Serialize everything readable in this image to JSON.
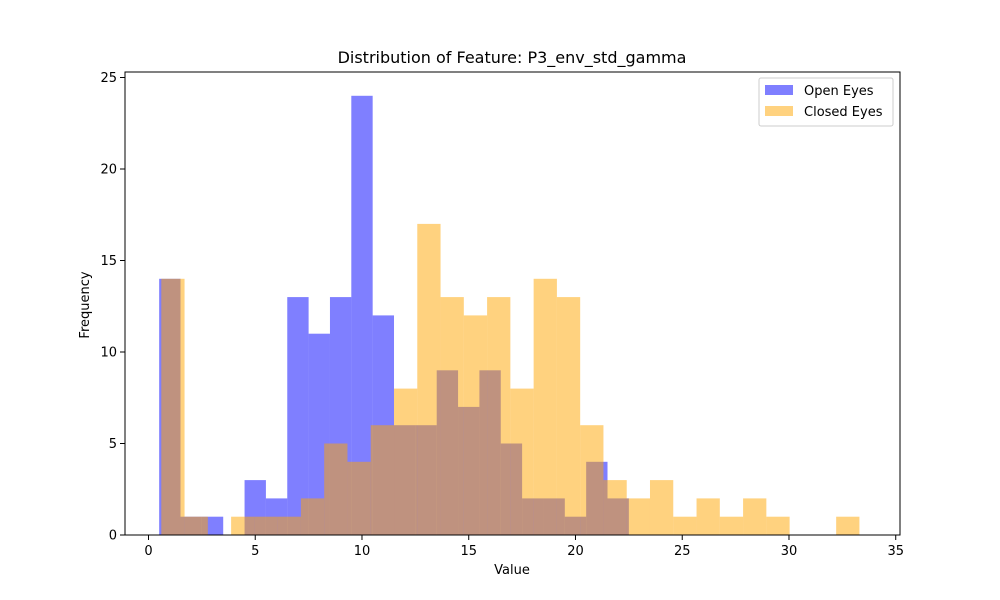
{
  "chart_data": {
    "type": "bar",
    "subtype": "overlapping-histogram",
    "title": "Distribution of Feature: P3_env_std_gamma",
    "xlabel": "Value",
    "ylabel": "Frequency",
    "xlim": [
      -1.1,
      35.2
    ],
    "ylim": [
      0,
      25.3
    ],
    "xticks": [
      0,
      5,
      10,
      15,
      20,
      25,
      30,
      35
    ],
    "yticks": [
      0,
      5,
      10,
      15,
      20,
      25
    ],
    "grid": false,
    "legend_position": "top-right",
    "series": [
      {
        "name": "Open Eyes",
        "color": "#0000ff",
        "opacity": 0.5,
        "bin_start": 0.5,
        "bin_width": 1.0,
        "values": [
          14,
          1,
          1,
          0,
          3,
          2,
          13,
          11,
          13,
          24,
          12,
          6,
          6,
          9,
          7,
          9,
          5,
          2,
          2,
          1,
          4,
          2
        ]
      },
      {
        "name": "Closed Eyes",
        "color": "#ffa500",
        "opacity": 0.5,
        "bin_start": 0.6,
        "bin_width": 1.09,
        "values": [
          14,
          1,
          0,
          1,
          1,
          1,
          2,
          5,
          4,
          6,
          8,
          17,
          13,
          12,
          13,
          8,
          14,
          13,
          6,
          3,
          2,
          3,
          1,
          2,
          1,
          2,
          1,
          0,
          0,
          1
        ]
      }
    ]
  }
}
